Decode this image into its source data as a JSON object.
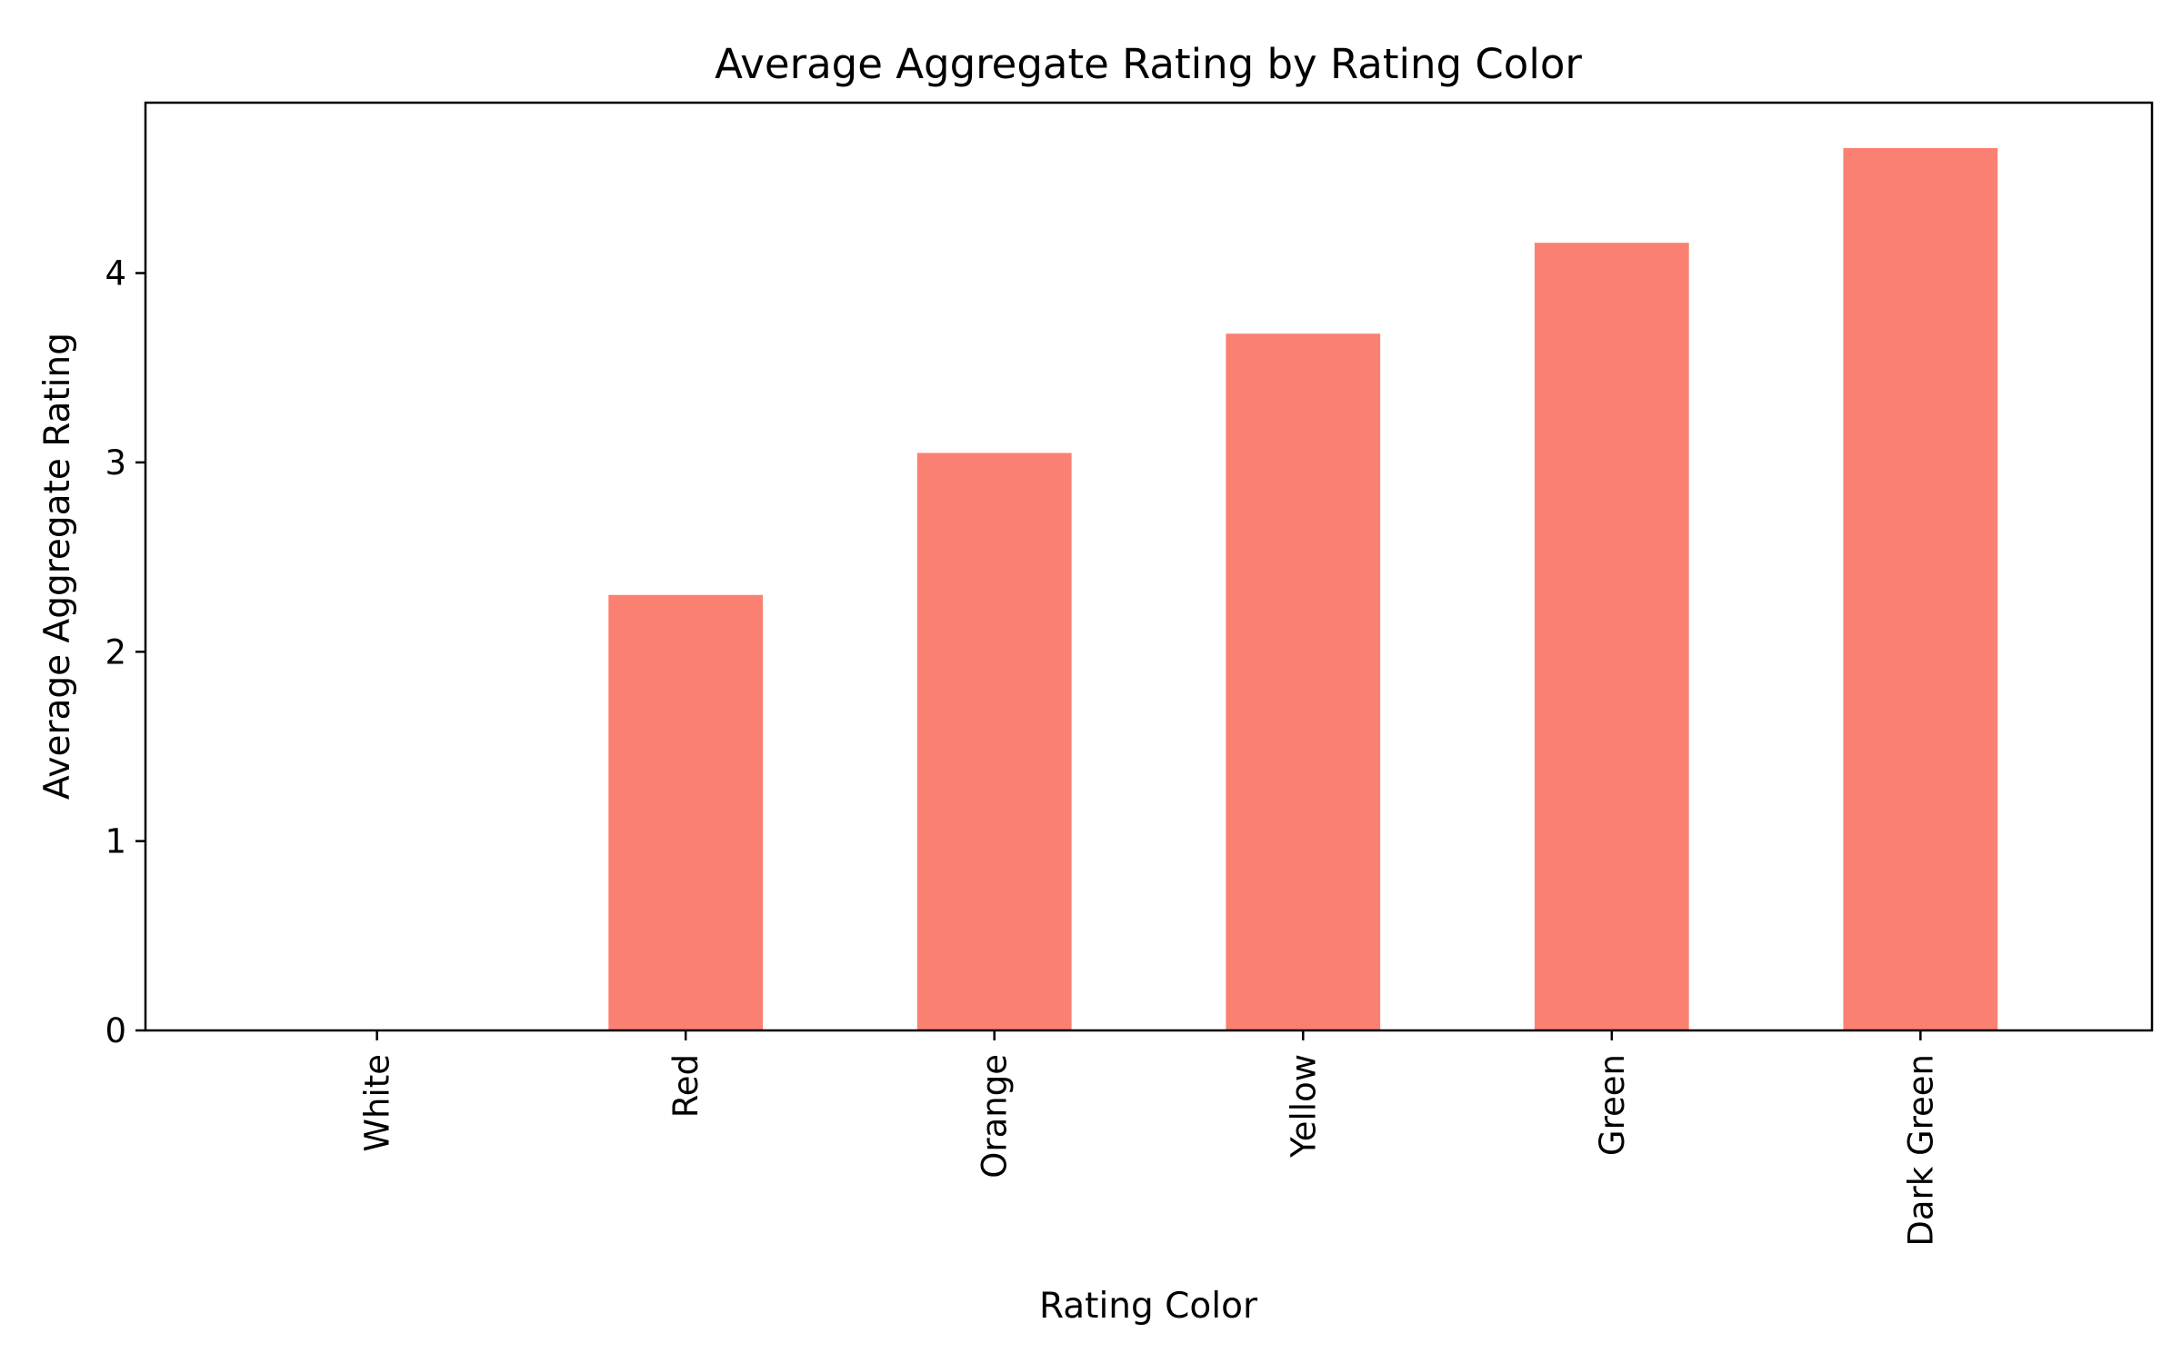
{
  "chart_data": {
    "type": "bar",
    "title": "Average Aggregate Rating by Rating Color",
    "xlabel": "Rating Color",
    "ylabel": "Average Aggregate Rating",
    "categories": [
      "White",
      "Red",
      "Orange",
      "Yellow",
      "Green",
      "Dark Green"
    ],
    "values": [
      0.0,
      2.3,
      3.05,
      3.68,
      4.16,
      4.66
    ],
    "ylim": [
      0,
      4.9
    ],
    "yticks": [
      0,
      1,
      2,
      3,
      4
    ],
    "bar_color": "#fa8072",
    "grid": false,
    "legend": "none"
  }
}
